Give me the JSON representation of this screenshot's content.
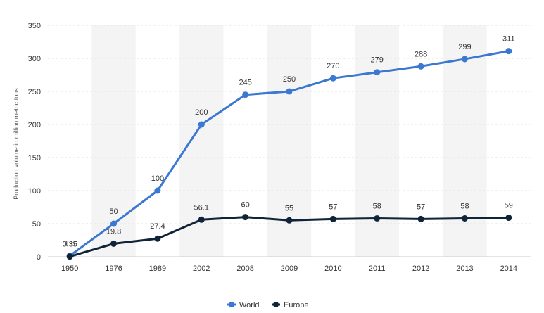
{
  "chart_data": {
    "type": "line",
    "categories": [
      "1950",
      "1976",
      "1989",
      "2002",
      "2008",
      "2009",
      "2010",
      "2011",
      "2012",
      "2013",
      "2014"
    ],
    "series": [
      {
        "name": "World",
        "values": [
          1.5,
          50,
          100,
          200,
          245,
          250,
          270,
          279,
          288,
          299,
          311
        ],
        "labels": [
          "1.5",
          "50",
          "100",
          "200",
          "245",
          "250",
          "270",
          "279",
          "288",
          "299",
          "311"
        ],
        "color": "#3a78d2"
      },
      {
        "name": "Europe",
        "values": [
          0.35,
          19.8,
          27.4,
          56.1,
          60,
          55,
          57,
          58,
          57,
          58,
          59
        ],
        "labels": [
          "0.35",
          "19.8",
          "27.4",
          "56.1",
          "60",
          "55",
          "57",
          "58",
          "57",
          "58",
          "59"
        ],
        "color": "#0f2437"
      }
    ],
    "ylabel": "Production volume in million metric tons",
    "ylim": [
      0,
      350
    ],
    "yticks": [
      0,
      50,
      100,
      150,
      200,
      250,
      300,
      350
    ],
    "grid": true,
    "legend": "bottom-center",
    "band_color": "#f4f4f4",
    "grid_color": "#e3e3e3"
  }
}
